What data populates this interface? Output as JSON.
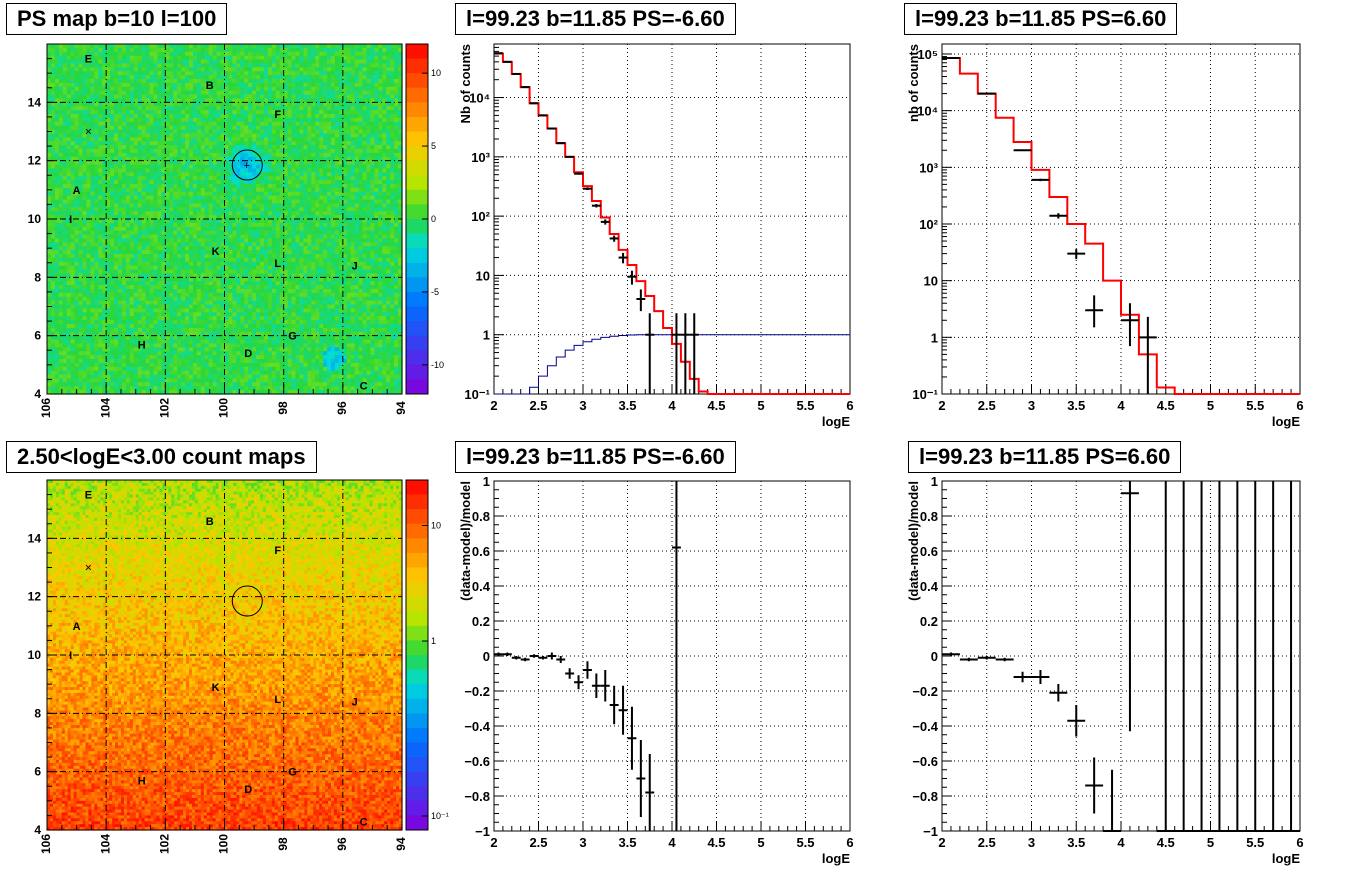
{
  "titles": {
    "map_top": "PS map b=10 l=100",
    "map_bottom": "2.50<logE<3.00 count maps",
    "spec_left": "l=99.23 b=11.85 PS=-6.60",
    "spec_right": "l=99.23 b=11.85 PS=6.60",
    "resid_left": "l=99.23 b=11.85 PS=-6.60",
    "resid_right": "l=99.23 b=11.85 PS=6.60"
  },
  "chart_data": [
    {
      "id": "ps-map",
      "type": "heatmap",
      "title": "PS map b=10 l=100",
      "x_ticks": [
        "106",
        "104",
        "102",
        "100",
        "98",
        "96",
        "94"
      ],
      "y_ticks": [
        "4",
        "6",
        "8",
        "10",
        "12",
        "14"
      ],
      "xlim": [
        106,
        94
      ],
      "ylim": [
        4,
        16
      ],
      "grid": true,
      "colorbar_ticks": [
        "10",
        "5",
        "0",
        "-5",
        "-10"
      ],
      "colorbar_range": [
        -12,
        12
      ],
      "source_labels": [
        "E",
        "B",
        "F",
        "A",
        "I",
        "K",
        "L",
        "J",
        "H",
        "D",
        "G",
        "C"
      ],
      "marker": "×",
      "circle": {
        "l": 99.23,
        "b": 11.85
      }
    },
    {
      "id": "count-map",
      "type": "heatmap",
      "title": "2.50<logE<3.00 count maps",
      "x_ticks": [
        "106",
        "104",
        "102",
        "100",
        "98",
        "96",
        "94"
      ],
      "y_ticks": [
        "4",
        "6",
        "8",
        "10",
        "12",
        "14"
      ],
      "xlim": [
        106,
        94
      ],
      "ylim": [
        4,
        16
      ],
      "grid": true,
      "colorbar_ticks": [
        "10",
        "1",
        "10⁻¹"
      ],
      "colorbar_scale": "log",
      "source_labels": [
        "E",
        "B",
        "F",
        "A",
        "I",
        "K",
        "L",
        "J",
        "H",
        "D",
        "G",
        "C"
      ],
      "marker": "×",
      "circle": {
        "l": 99.23,
        "b": 11.85
      }
    },
    {
      "id": "spectrum-left",
      "type": "line",
      "title": "l=99.23 b=11.85 PS=-6.60",
      "xlabel": "logE",
      "ylabel": "Nb of counts",
      "xlim": [
        2,
        6
      ],
      "ylim": [
        0.1,
        80000
      ],
      "yscale": "log",
      "x_ticks": [
        "2",
        "2.5",
        "3",
        "3.5",
        "4",
        "4.5",
        "5",
        "5.5",
        "6"
      ],
      "y_ticks": [
        "10⁻¹",
        "1",
        "10",
        "10²",
        "10³",
        "10⁴"
      ],
      "grid": true,
      "series": [
        {
          "color": "#ff0000",
          "style": "step",
          "bin_width": 0.1,
          "x": [
            2.0,
            2.1,
            2.2,
            2.3,
            2.4,
            2.5,
            2.6,
            2.7,
            2.8,
            2.9,
            3.0,
            3.1,
            3.2,
            3.3,
            3.4,
            3.5,
            3.6,
            3.7,
            3.8,
            3.9,
            4.0,
            4.1,
            4.2,
            4.3,
            4.4,
            4.5,
            4.6,
            4.7,
            4.8,
            4.9,
            5.0,
            5.1,
            5.2,
            5.3,
            5.4,
            5.5,
            5.6,
            5.7,
            5.8,
            5.9
          ],
          "values": [
            55000,
            40000,
            25000,
            15000,
            8000,
            5000,
            3000,
            1700,
            1000,
            550,
            320,
            180,
            95,
            50,
            27,
            15,
            8,
            4.5,
            2.5,
            1.3,
            0.7,
            0.35,
            0.18,
            0.11,
            0.1,
            0.1,
            0.1,
            0.1,
            0.1,
            0.1,
            0.1,
            0.1,
            0.1,
            0.1,
            0.1,
            0.1,
            0.1,
            0.1,
            0.1,
            0.1
          ]
        },
        {
          "color": "#00008b",
          "style": "step",
          "bin_width": 0.1,
          "x": [
            2.0,
            2.1,
            2.2,
            2.3,
            2.4,
            2.5,
            2.6,
            2.7,
            2.8,
            2.9,
            3.0,
            3.1,
            3.2,
            3.3,
            3.4,
            3.5,
            3.6,
            3.7,
            3.8,
            3.9,
            4.0,
            4.1,
            4.2,
            4.3,
            4.4,
            4.5,
            4.6,
            4.7,
            4.8,
            4.9,
            5.0,
            5.1,
            5.2,
            5.3,
            5.4,
            5.5,
            5.6,
            5.7,
            5.8,
            5.9
          ],
          "values": [
            0.1,
            0.1,
            0.1,
            0.1,
            0.13,
            0.2,
            0.3,
            0.42,
            0.55,
            0.66,
            0.76,
            0.84,
            0.9,
            0.94,
            0.97,
            0.99,
            1,
            1,
            1,
            1,
            1,
            1,
            1,
            1,
            1,
            1,
            1,
            1,
            1,
            1,
            1,
            1,
            1,
            1,
            1,
            1,
            1,
            1,
            1,
            1
          ]
        },
        {
          "color": "#000000",
          "style": "errorbar",
          "x": [
            2.05,
            2.15,
            2.25,
            2.35,
            2.45,
            2.55,
            2.65,
            2.75,
            2.85,
            2.95,
            3.05,
            3.15,
            3.25,
            3.35,
            3.45,
            3.55,
            3.65,
            3.75,
            4.05,
            4.15,
            4.25
          ],
          "values": [
            56000,
            40000,
            25000,
            15000,
            8000,
            5000,
            3000,
            1700,
            1000,
            520,
            290,
            150,
            80,
            42,
            20,
            9.5,
            4,
            1,
            1,
            1,
            1
          ],
          "xerr": 0.05,
          "ylo": [
            55500,
            39500,
            24800,
            14800,
            7900,
            4950,
            2950,
            1650,
            970,
            500,
            275,
            140,
            72,
            37,
            16,
            7,
            2.5,
            0.1,
            0.1,
            0.1,
            0.1
          ],
          "yhi": [
            56500,
            40500,
            25200,
            15200,
            8100,
            5050,
            3050,
            1750,
            1030,
            540,
            305,
            160,
            88,
            47,
            24,
            12,
            5.8,
            2.3,
            2.3,
            2.3,
            2.3
          ]
        }
      ]
    },
    {
      "id": "spectrum-right",
      "type": "line",
      "title": "l=99.23 b=11.85 PS=6.60",
      "xlabel": "logE",
      "ylabel": "nb of counts",
      "xlim": [
        2,
        6
      ],
      "ylim": [
        0.1,
        150000
      ],
      "yscale": "log",
      "x_ticks": [
        "2",
        "2.5",
        "3",
        "3.5",
        "4",
        "4.5",
        "5",
        "5.5",
        "6"
      ],
      "y_ticks": [
        "10⁻¹",
        "1",
        "10",
        "10²",
        "10³",
        "10⁴",
        "10⁵"
      ],
      "grid": true,
      "series": [
        {
          "color": "#ff0000",
          "style": "step",
          "bin_width": 0.2,
          "x": [
            2.0,
            2.2,
            2.4,
            2.6,
            2.8,
            3.0,
            3.2,
            3.4,
            3.6,
            3.8,
            4.0,
            4.2,
            4.4,
            4.6,
            4.8,
            5.0,
            5.2,
            5.4,
            5.6,
            5.8
          ],
          "values": [
            85000,
            45000,
            20000,
            7500,
            2800,
            900,
            300,
            100,
            45,
            10,
            2.5,
            0.5,
            0.13,
            0.1,
            0.1,
            0.1,
            0.1,
            0.1,
            0.1,
            0.1
          ]
        },
        {
          "color": "#000000",
          "style": "errorbar",
          "x": [
            2.1,
            2.5,
            2.9,
            3.1,
            3.3,
            3.5,
            3.7,
            4.1,
            4.3
          ],
          "values": [
            85000,
            20000,
            2000,
            600,
            140,
            30,
            3,
            2,
            1
          ],
          "xerr": 0.1,
          "ylo": [
            84500,
            19800,
            1950,
            570,
            125,
            24,
            1.5,
            0.7,
            0.1
          ],
          "yhi": [
            85500,
            20200,
            2050,
            630,
            155,
            36,
            5.5,
            4,
            2.3
          ]
        }
      ]
    },
    {
      "id": "residual-left",
      "type": "scatter",
      "title": "l=99.23 b=11.85 PS=-6.60",
      "xlabel": "logE",
      "ylabel": "(data-model)/model",
      "xlim": [
        2,
        6
      ],
      "ylim": [
        -1,
        1
      ],
      "x_ticks": [
        "2",
        "2.5",
        "3",
        "3.5",
        "4",
        "4.5",
        "5",
        "5.5",
        "6"
      ],
      "y_ticks": [
        "−1",
        "−0.8",
        "−0.6",
        "−0.4",
        "−0.2",
        "0",
        "0.2",
        "0.4",
        "0.6",
        "0.8",
        "1"
      ],
      "grid": true,
      "series": [
        {
          "color": "#000000",
          "style": "errorbar",
          "x": [
            2.05,
            2.15,
            2.25,
            2.35,
            2.45,
            2.55,
            2.65,
            2.75,
            2.85,
            2.95,
            3.05,
            3.15,
            3.25,
            3.35,
            3.45,
            3.55,
            3.65,
            3.75,
            4.05
          ],
          "values": [
            0.01,
            0.01,
            -0.01,
            -0.02,
            0.0,
            -0.01,
            0.0,
            -0.02,
            -0.1,
            -0.15,
            -0.08,
            -0.17,
            -0.17,
            -0.28,
            -0.31,
            -0.47,
            -0.7,
            -0.78,
            0.62
          ],
          "xerr": 0.05,
          "ylo": [
            0.0,
            0.0,
            -0.02,
            -0.03,
            -0.01,
            -0.02,
            -0.02,
            -0.04,
            -0.13,
            -0.19,
            -0.13,
            -0.24,
            -0.26,
            -0.39,
            -0.45,
            -0.65,
            -0.92,
            -1.0,
            -1.0
          ],
          "yhi": [
            0.02,
            0.02,
            0.0,
            -0.01,
            0.01,
            0.0,
            0.02,
            0.0,
            -0.07,
            -0.11,
            -0.03,
            -0.1,
            -0.08,
            -0.17,
            -0.17,
            -0.29,
            -0.48,
            -0.56,
            1.0
          ]
        }
      ]
    },
    {
      "id": "residual-right",
      "type": "scatter",
      "title": "l=99.23 b=11.85 PS=6.60",
      "xlabel": "logE",
      "ylabel": "(data-model)/model",
      "xlim": [
        2,
        6
      ],
      "ylim": [
        -1,
        1
      ],
      "x_ticks": [
        "2",
        "2.5",
        "3",
        "3.5",
        "4",
        "4.5",
        "5",
        "5.5",
        "6"
      ],
      "y_ticks": [
        "−1",
        "−0.8",
        "−0.6",
        "−0.4",
        "−0.2",
        "0",
        "0.2",
        "0.4",
        "0.6",
        "0.8",
        "1"
      ],
      "grid": true,
      "series": [
        {
          "color": "#000000",
          "style": "errorbar",
          "x": [
            2.1,
            2.3,
            2.5,
            2.7,
            2.9,
            3.1,
            3.3,
            3.5,
            3.7,
            3.9,
            4.1,
            4.5,
            4.7,
            4.9,
            5.1,
            5.3,
            5.5,
            5.7,
            5.9
          ],
          "values": [
            0.01,
            -0.02,
            -0.01,
            -0.02,
            -0.12,
            -0.12,
            -0.21,
            -0.37,
            -0.74,
            -1.0,
            0.93,
            -1.0,
            -1.0,
            -1.0,
            -1.0,
            -1.0,
            -1.0,
            -1.0,
            -1.0
          ],
          "xerr": 0.1,
          "ylo": [
            0.0,
            -0.03,
            -0.02,
            -0.03,
            -0.15,
            -0.16,
            -0.26,
            -0.46,
            -0.9,
            -1.0,
            -0.43,
            -1.0,
            -1.0,
            -1.0,
            -1.0,
            -1.0,
            -1.0,
            -1.0,
            -1.0
          ],
          "yhi": [
            0.02,
            -0.01,
            0.0,
            -0.01,
            -0.09,
            -0.08,
            -0.16,
            -0.28,
            -0.58,
            -0.65,
            1.0,
            1.0,
            1.0,
            1.0,
            1.0,
            1.0,
            1.0,
            1.0,
            1.0
          ]
        }
      ]
    }
  ]
}
